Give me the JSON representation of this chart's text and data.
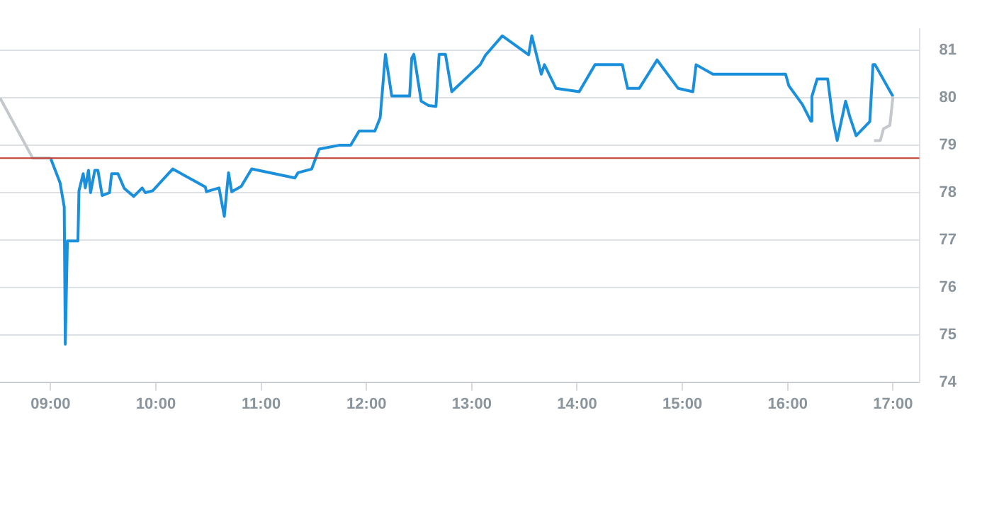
{
  "chart_data": {
    "type": "line",
    "xlim": [
      8.52,
      17.25
    ],
    "ylim": [
      74,
      81.45
    ],
    "xticks": [
      {
        "value": 9,
        "label": "09:00"
      },
      {
        "value": 10,
        "label": "10:00"
      },
      {
        "value": 11,
        "label": "11:00"
      },
      {
        "value": 12,
        "label": "12:00"
      },
      {
        "value": 13,
        "label": "13:00"
      },
      {
        "value": 14,
        "label": "14:00"
      },
      {
        "value": 15,
        "label": "15:00"
      },
      {
        "value": 16,
        "label": "16:00"
      },
      {
        "value": 17,
        "label": "17:00"
      }
    ],
    "yticks": [
      74,
      75,
      76,
      77,
      78,
      79,
      80,
      81
    ],
    "grid": "y",
    "legend": false,
    "marker": "none",
    "line_style": "solid",
    "ref_lines": [
      {
        "axis": "y",
        "value": 78.73,
        "color": "#c0392b"
      }
    ],
    "series": [
      {
        "color": "#c4c8cc",
        "x": [
          8.52,
          8.83,
          9.0
        ],
        "values": [
          80.0,
          78.73,
          78.73
        ]
      },
      {
        "color": "#c4c8cc",
        "x": [
          16.82,
          16.88,
          16.91,
          16.97,
          17.0
        ],
        "values": [
          79.1,
          79.1,
          79.35,
          79.42,
          80.03
        ]
      },
      {
        "color": "#1a8fdc",
        "x": [
          9.0,
          9.09,
          9.13,
          9.14,
          9.16,
          9.26,
          9.27,
          9.31,
          9.33,
          9.36,
          9.38,
          9.42,
          9.45,
          9.49,
          9.56,
          9.58,
          9.64,
          9.7,
          9.79,
          9.87,
          9.9,
          9.97,
          10.16,
          10.47,
          10.48,
          10.6,
          10.65,
          10.69,
          10.72,
          10.81,
          10.91,
          11.32,
          11.35,
          11.48,
          11.55,
          11.74,
          11.85,
          11.93,
          12.08,
          12.13,
          12.18,
          12.24,
          12.41,
          12.43,
          12.45,
          12.52,
          12.59,
          12.66,
          12.69,
          12.75,
          12.81,
          13.08,
          13.13,
          13.29,
          13.54,
          13.57,
          13.66,
          13.69,
          13.8,
          14.02,
          14.17,
          14.43,
          14.48,
          14.59,
          14.76,
          14.96,
          15.1,
          15.13,
          15.29,
          15.98,
          16.01,
          16.14,
          16.22,
          16.23,
          16.28,
          16.38,
          16.43,
          16.47,
          16.55,
          16.59,
          16.65,
          16.78,
          16.81,
          16.83,
          17.0
        ],
        "values": [
          78.73,
          78.21,
          77.7,
          74.8,
          76.98,
          76.98,
          78.04,
          78.4,
          78.1,
          78.47,
          78.0,
          78.47,
          78.47,
          77.94,
          78.0,
          78.4,
          78.4,
          78.09,
          77.92,
          78.1,
          78.0,
          78.04,
          78.5,
          78.12,
          78.02,
          78.1,
          77.5,
          78.42,
          78.02,
          78.13,
          78.5,
          78.31,
          78.42,
          78.5,
          78.92,
          79.0,
          79.0,
          79.3,
          79.3,
          79.58,
          80.92,
          80.04,
          80.04,
          80.84,
          80.92,
          79.93,
          79.84,
          79.82,
          80.92,
          80.92,
          80.13,
          80.7,
          80.9,
          81.31,
          80.91,
          81.31,
          80.5,
          80.7,
          80.2,
          80.13,
          80.7,
          80.7,
          80.2,
          80.2,
          80.8,
          80.2,
          80.13,
          80.7,
          80.5,
          80.5,
          80.26,
          79.86,
          79.51,
          80.03,
          80.4,
          80.4,
          79.53,
          79.1,
          79.93,
          79.6,
          79.2,
          79.5,
          80.7,
          80.7,
          80.03
        ]
      }
    ]
  }
}
